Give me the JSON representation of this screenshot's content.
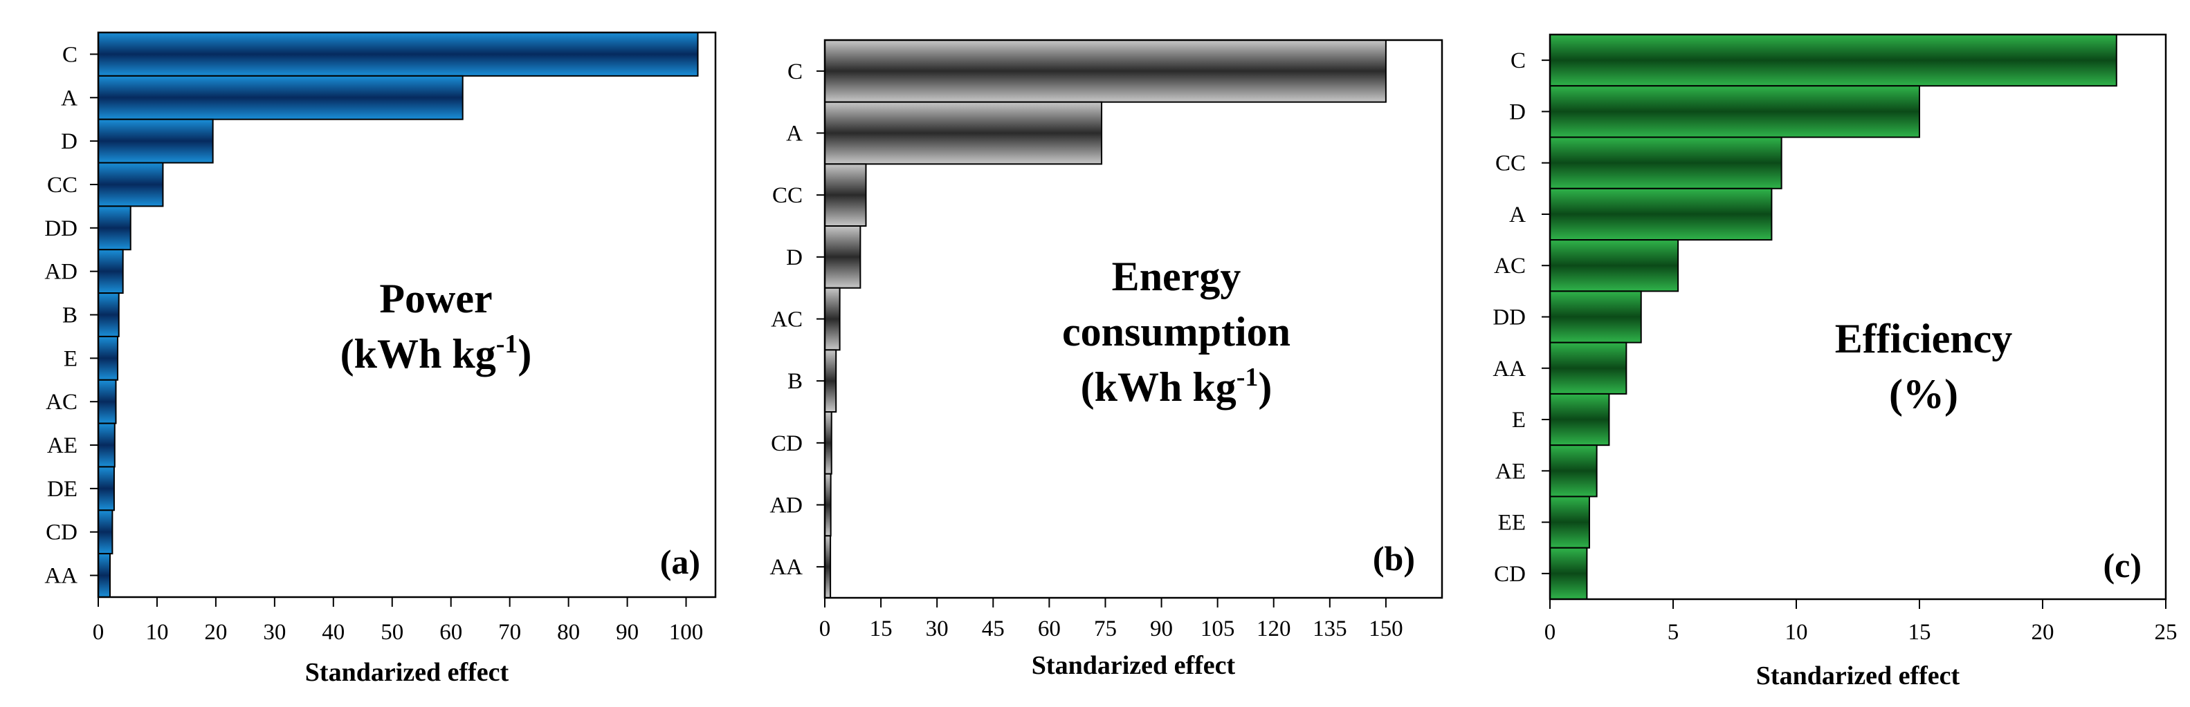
{
  "chart_data": [
    {
      "type": "bar",
      "orientation": "horizontal",
      "title_lines": [
        "Power",
        "(kWh kg",
        "-1",
        ")"
      ],
      "panel_label": "(a)",
      "xlabel": "Standarized  effect",
      "xlim": [
        0,
        105
      ],
      "xticks": [
        0,
        10,
        20,
        30,
        40,
        50,
        60,
        70,
        80,
        90,
        100
      ],
      "categories": [
        "C",
        "A",
        "D",
        "CC",
        "DD",
        "AD",
        "B",
        "E",
        "AC",
        "AE",
        "DE",
        "CD",
        "AA"
      ],
      "values": [
        102,
        62,
        19.5,
        11,
        5.5,
        4.2,
        3.5,
        3.3,
        3.0,
        2.8,
        2.7,
        2.4,
        2.0
      ],
      "color": "#1a8fd8",
      "color_dark": "#062a5e"
    },
    {
      "type": "bar",
      "orientation": "horizontal",
      "title_lines": [
        "Energy",
        "consumption",
        "(kWh kg",
        "-1",
        ")"
      ],
      "panel_label": "(b)",
      "xlabel": "Standarized  effect",
      "xlim": [
        0,
        165
      ],
      "xticks": [
        0,
        15,
        30,
        45,
        60,
        75,
        90,
        105,
        120,
        135,
        150
      ],
      "categories": [
        "C",
        "A",
        "CC",
        "D",
        "AC",
        "B",
        "CD",
        "AD",
        "AA"
      ],
      "values": [
        150,
        74,
        11,
        9.5,
        4,
        3,
        1.8,
        1.6,
        1.5
      ],
      "color": "#c8c8c8",
      "color_dark": "#2a2a2a"
    },
    {
      "type": "bar",
      "orientation": "horizontal",
      "title_lines": [
        "Efficiency",
        "(%)"
      ],
      "panel_label": "(c)",
      "xlabel": "Standarized  effect",
      "xlim": [
        0,
        25
      ],
      "xticks": [
        0,
        5,
        10,
        15,
        20,
        25
      ],
      "categories": [
        "C",
        "D",
        "CC",
        "A",
        "AC",
        "DD",
        "AA",
        "E",
        "AE",
        "EE",
        "CD"
      ],
      "values": [
        23,
        15,
        9.4,
        9.0,
        5.2,
        3.7,
        3.1,
        2.4,
        1.9,
        1.6,
        1.5
      ],
      "color": "#2fb34a",
      "color_dark": "#0b4a18"
    }
  ]
}
